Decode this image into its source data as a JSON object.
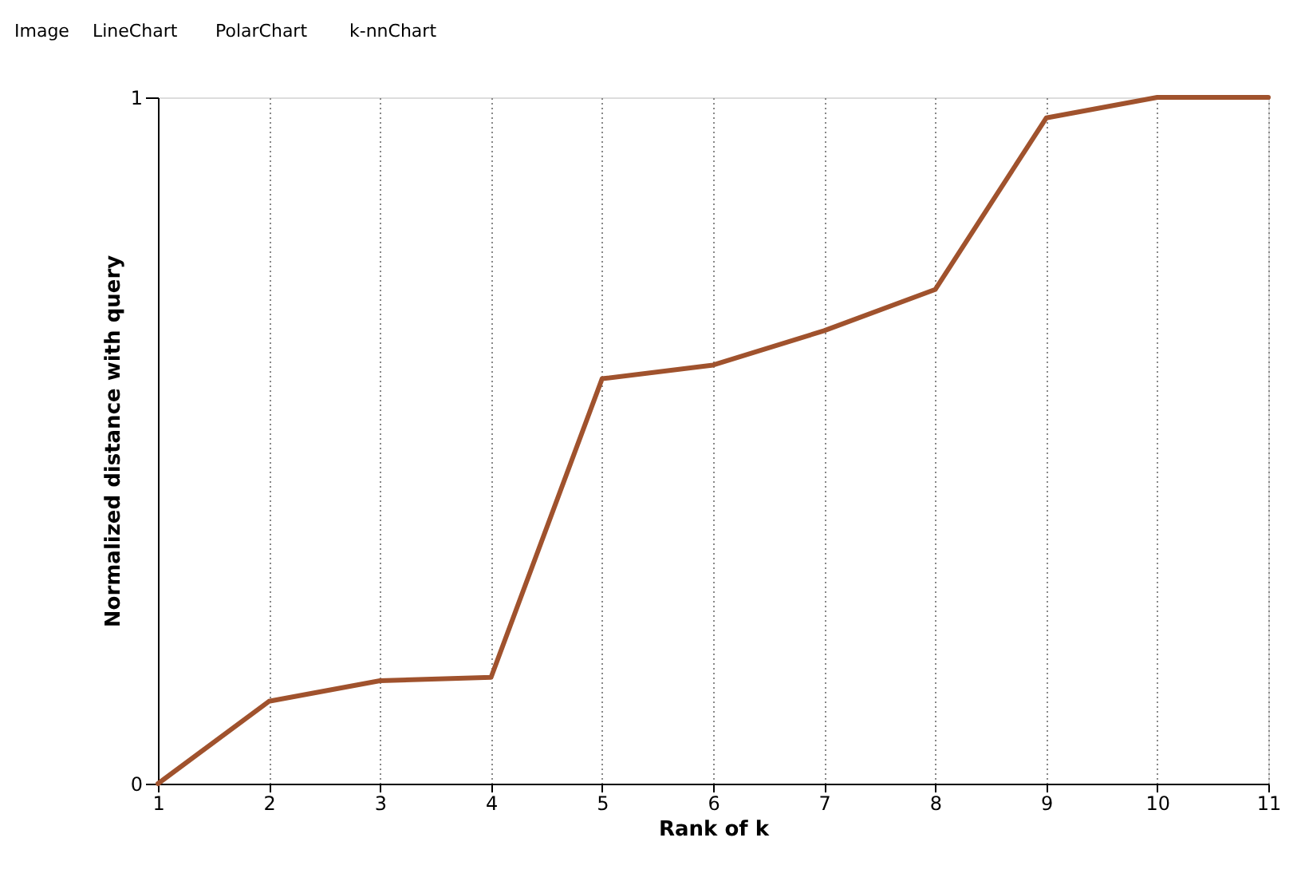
{
  "chart_data": {
    "type": "line",
    "xlabel": "Rank of k",
    "ylabel": "Normalized distance with query",
    "x": [
      1,
      2,
      3,
      4,
      5,
      6,
      7,
      8,
      9,
      10,
      11
    ],
    "series": [
      {
        "color": "#a0522d",
        "values": [
          0,
          0.12,
          0.15,
          0.155,
          0.59,
          0.61,
          0.66,
          0.72,
          0.97,
          1,
          1
        ]
      }
    ],
    "xlim": [
      1,
      11
    ],
    "xticks": [
      1,
      2,
      3,
      4,
      5,
      6,
      7,
      8,
      9,
      10,
      11
    ],
    "ylim": [
      0,
      1
    ],
    "yticks": [
      0,
      1
    ],
    "grid": "x",
    "marker": "none",
    "line_style": "solid",
    "annotations": [
      "Image",
      "LineChart",
      "PolarChart",
      "k-nnChart"
    ]
  }
}
